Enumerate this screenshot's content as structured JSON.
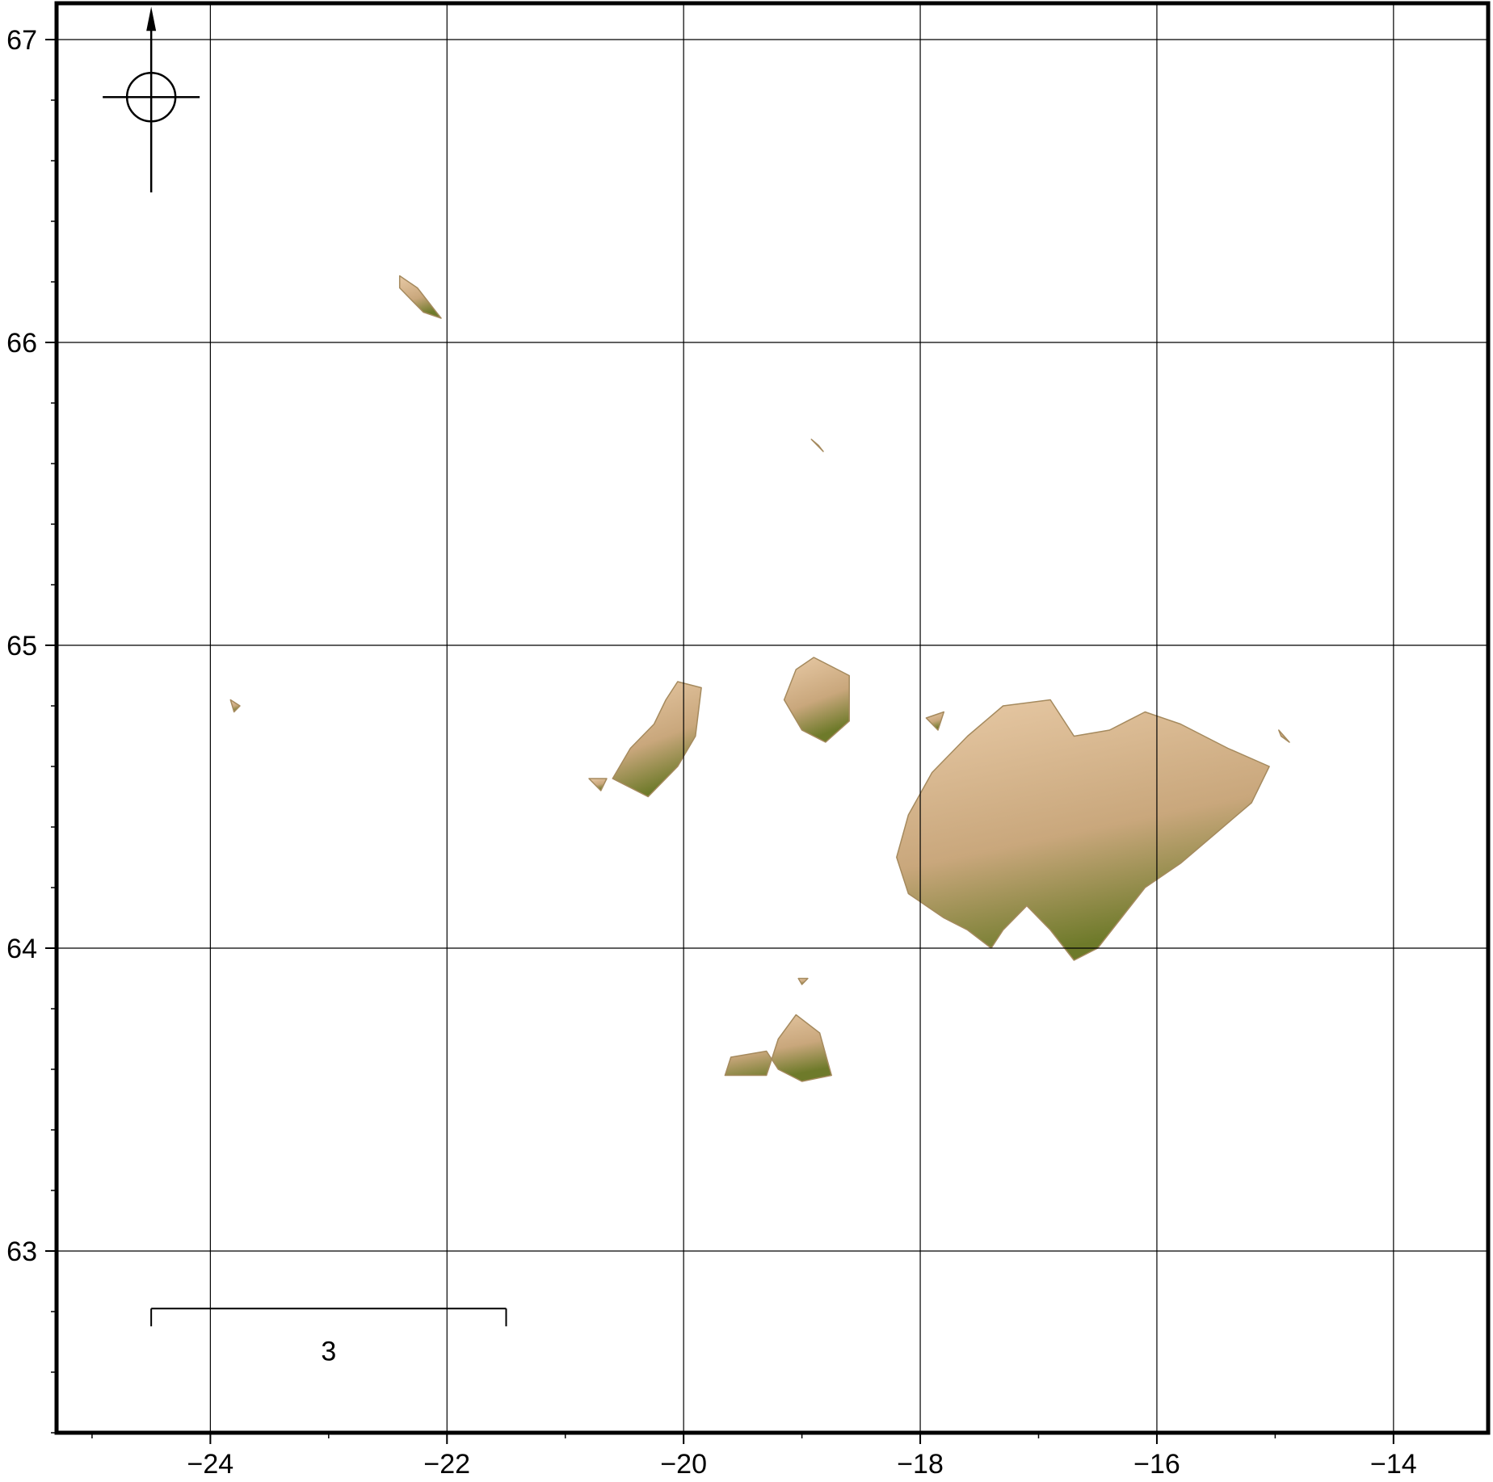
{
  "map": {
    "region": {
      "lon_min": -25.3,
      "lon_max": -13.2,
      "lat_min": 62.4,
      "lat_max": 67.12
    },
    "grid": true,
    "lon_ticks": [
      {
        "value": -24,
        "label": "−24"
      },
      {
        "value": -22,
        "label": "−22"
      },
      {
        "value": -20,
        "label": "−20"
      },
      {
        "value": -18,
        "label": "−18"
      },
      {
        "value": -16,
        "label": "−16"
      },
      {
        "value": -14,
        "label": "−14"
      }
    ],
    "lat_ticks": [
      {
        "value": 67,
        "label": "67"
      },
      {
        "value": 66,
        "label": "66"
      },
      {
        "value": 65,
        "label": "65"
      },
      {
        "value": 64,
        "label": "64"
      },
      {
        "value": 63,
        "label": "63"
      }
    ],
    "minor_lon_step": 1,
    "minor_lat_step": 0.2,
    "scale_bar": {
      "lon_start": -24.5,
      "lon_end": -21.5,
      "lat": 62.81,
      "label": "3"
    },
    "compass": {
      "lon": -24.5,
      "lat": 66.81,
      "icon": "north-arrow-compass-icon"
    },
    "terrain_colors": {
      "high": "#e8caa6",
      "mid": "#c9a77c",
      "low": "#6e7a2a",
      "shade": "#a58a5e"
    },
    "land_masses": [
      {
        "name": "main-land-mass",
        "points": [
          [
            -17.9,
            64.58
          ],
          [
            -17.6,
            64.7
          ],
          [
            -17.3,
            64.8
          ],
          [
            -16.9,
            64.82
          ],
          [
            -16.7,
            64.7
          ],
          [
            -16.4,
            64.72
          ],
          [
            -16.1,
            64.78
          ],
          [
            -15.8,
            64.74
          ],
          [
            -15.4,
            64.66
          ],
          [
            -15.05,
            64.6
          ],
          [
            -15.2,
            64.48
          ],
          [
            -15.5,
            64.38
          ],
          [
            -15.8,
            64.28
          ],
          [
            -16.1,
            64.2
          ],
          [
            -16.3,
            64.1
          ],
          [
            -16.5,
            64.0
          ],
          [
            -16.7,
            63.96
          ],
          [
            -16.9,
            64.06
          ],
          [
            -17.1,
            64.14
          ],
          [
            -17.3,
            64.06
          ],
          [
            -17.4,
            64.0
          ],
          [
            -17.6,
            64.06
          ],
          [
            -17.8,
            64.1
          ],
          [
            -18.1,
            64.18
          ],
          [
            -18.2,
            64.3
          ],
          [
            -18.1,
            64.44
          ]
        ]
      },
      {
        "name": "west-peninsula",
        "points": [
          [
            -20.05,
            64.88
          ],
          [
            -19.85,
            64.86
          ],
          [
            -19.9,
            64.7
          ],
          [
            -20.05,
            64.6
          ],
          [
            -20.3,
            64.5
          ],
          [
            -20.6,
            64.56
          ],
          [
            -20.45,
            64.66
          ],
          [
            -20.25,
            64.74
          ],
          [
            -20.15,
            64.82
          ]
        ]
      },
      {
        "name": "central-island",
        "points": [
          [
            -18.9,
            64.96
          ],
          [
            -18.6,
            64.9
          ],
          [
            -18.6,
            64.75
          ],
          [
            -18.8,
            64.68
          ],
          [
            -19.0,
            64.72
          ],
          [
            -19.15,
            64.82
          ],
          [
            -19.05,
            64.92
          ]
        ]
      },
      {
        "name": "south-island",
        "points": [
          [
            -19.05,
            63.78
          ],
          [
            -18.85,
            63.72
          ],
          [
            -18.75,
            63.58
          ],
          [
            -19.0,
            63.56
          ],
          [
            -19.2,
            63.6
          ],
          [
            -19.3,
            63.66
          ],
          [
            -19.6,
            63.64
          ],
          [
            -19.65,
            63.58
          ],
          [
            -19.3,
            63.58
          ],
          [
            -19.2,
            63.7
          ]
        ]
      },
      {
        "name": "northwest-island",
        "points": [
          [
            -22.4,
            66.22
          ],
          [
            -22.25,
            66.18
          ],
          [
            -22.05,
            66.08
          ],
          [
            -22.2,
            66.1
          ],
          [
            -22.4,
            66.18
          ]
        ]
      },
      {
        "name": "north-islet",
        "points": [
          [
            -18.92,
            65.68
          ],
          [
            -18.82,
            65.64
          ],
          [
            -18.86,
            65.66
          ]
        ]
      },
      {
        "name": "west-islet",
        "points": [
          [
            -23.83,
            64.82
          ],
          [
            -23.75,
            64.8
          ],
          [
            -23.8,
            64.78
          ]
        ]
      },
      {
        "name": "east-islet",
        "points": [
          [
            -14.97,
            64.72
          ],
          [
            -14.88,
            64.68
          ],
          [
            -14.95,
            64.7
          ]
        ]
      },
      {
        "name": "small-islet-a",
        "points": [
          [
            -17.95,
            64.76
          ],
          [
            -17.8,
            64.78
          ],
          [
            -17.85,
            64.72
          ]
        ]
      },
      {
        "name": "small-islet-b",
        "points": [
          [
            -20.8,
            64.56
          ],
          [
            -20.65,
            64.56
          ],
          [
            -20.7,
            64.52
          ]
        ]
      },
      {
        "name": "small-islet-c",
        "points": [
          [
            -19.03,
            63.9
          ],
          [
            -18.95,
            63.9
          ],
          [
            -19.0,
            63.88
          ]
        ]
      }
    ]
  }
}
